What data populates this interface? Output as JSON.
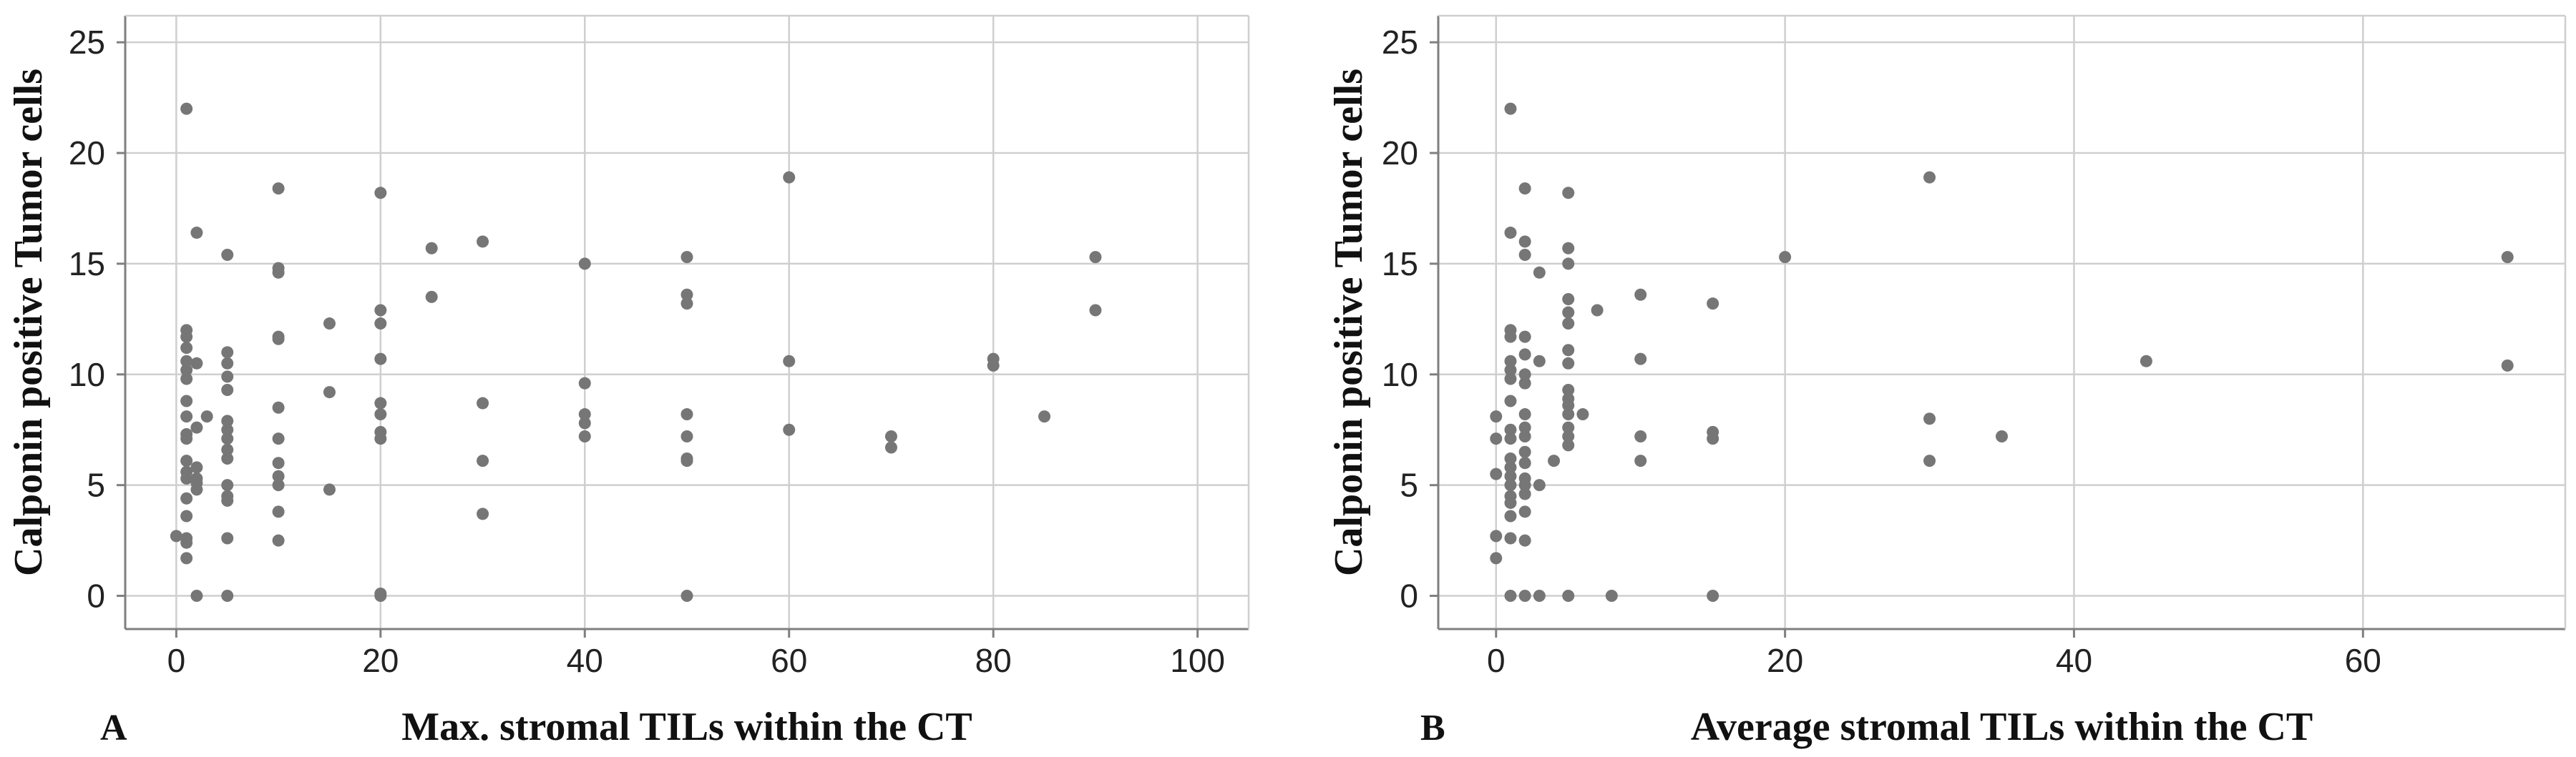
{
  "point_color": "#767676",
  "grid_color": "#cfcfcf",
  "axis_color": "#7f7f7f",
  "chart_data": [
    {
      "type": "scatter",
      "panel_label": "A",
      "xlabel": "Max. stromal TILs within the CT",
      "ylabel": "Calponin positive Tumor cells",
      "xlim": [
        -5,
        105
      ],
      "ylim": [
        -1.5,
        26.2
      ],
      "xticks": [
        0,
        20,
        40,
        60,
        80,
        100
      ],
      "yticks": [
        0,
        5,
        10,
        15,
        20,
        25
      ],
      "grid": true,
      "points": [
        {
          "x": 0,
          "y": 2.7
        },
        {
          "x": 1,
          "y": 22
        },
        {
          "x": 1,
          "y": 12
        },
        {
          "x": 1,
          "y": 11.7
        },
        {
          "x": 1,
          "y": 11.2
        },
        {
          "x": 1,
          "y": 10.6
        },
        {
          "x": 1,
          "y": 10.2
        },
        {
          "x": 1,
          "y": 9.8
        },
        {
          "x": 1,
          "y": 8.8
        },
        {
          "x": 1,
          "y": 8.1
        },
        {
          "x": 1,
          "y": 7.3
        },
        {
          "x": 1,
          "y": 7.1
        },
        {
          "x": 1,
          "y": 6.1
        },
        {
          "x": 1,
          "y": 5.6
        },
        {
          "x": 1,
          "y": 5.3
        },
        {
          "x": 1,
          "y": 4.4
        },
        {
          "x": 1,
          "y": 3.6
        },
        {
          "x": 1,
          "y": 2.6
        },
        {
          "x": 1,
          "y": 2.4
        },
        {
          "x": 1,
          "y": 1.7
        },
        {
          "x": 2,
          "y": 16.4
        },
        {
          "x": 2,
          "y": 10.5
        },
        {
          "x": 2,
          "y": 7.6
        },
        {
          "x": 2,
          "y": 5.8
        },
        {
          "x": 2,
          "y": 5.3
        },
        {
          "x": 2,
          "y": 5.1
        },
        {
          "x": 2,
          "y": 4.8
        },
        {
          "x": 2,
          "y": 0
        },
        {
          "x": 3,
          "y": 8.1
        },
        {
          "x": 5,
          "y": 15.4
        },
        {
          "x": 5,
          "y": 11
        },
        {
          "x": 5,
          "y": 10.5
        },
        {
          "x": 5,
          "y": 9.9
        },
        {
          "x": 5,
          "y": 9.3
        },
        {
          "x": 5,
          "y": 7.9
        },
        {
          "x": 5,
          "y": 7.5
        },
        {
          "x": 5,
          "y": 7.1
        },
        {
          "x": 5,
          "y": 6.6
        },
        {
          "x": 5,
          "y": 6.2
        },
        {
          "x": 5,
          "y": 5
        },
        {
          "x": 5,
          "y": 4.5
        },
        {
          "x": 5,
          "y": 4.3
        },
        {
          "x": 5,
          "y": 2.6
        },
        {
          "x": 5,
          "y": 0
        },
        {
          "x": 10,
          "y": 18.4
        },
        {
          "x": 10,
          "y": 14.8
        },
        {
          "x": 10,
          "y": 14.6
        },
        {
          "x": 10,
          "y": 11.7
        },
        {
          "x": 10,
          "y": 11.6
        },
        {
          "x": 10,
          "y": 8.5
        },
        {
          "x": 10,
          "y": 7.1
        },
        {
          "x": 10,
          "y": 6
        },
        {
          "x": 10,
          "y": 5.4
        },
        {
          "x": 10,
          "y": 5
        },
        {
          "x": 10,
          "y": 3.8
        },
        {
          "x": 10,
          "y": 2.5
        },
        {
          "x": 15,
          "y": 12.3
        },
        {
          "x": 15,
          "y": 9.2
        },
        {
          "x": 15,
          "y": 4.8
        },
        {
          "x": 20,
          "y": 18.2
        },
        {
          "x": 20,
          "y": 12.9
        },
        {
          "x": 20,
          "y": 12.3
        },
        {
          "x": 20,
          "y": 10.7
        },
        {
          "x": 20,
          "y": 8.7
        },
        {
          "x": 20,
          "y": 8.2
        },
        {
          "x": 20,
          "y": 7.4
        },
        {
          "x": 20,
          "y": 7.1
        },
        {
          "x": 20,
          "y": 0.1
        },
        {
          "x": 20,
          "y": 0
        },
        {
          "x": 25,
          "y": 15.7
        },
        {
          "x": 25,
          "y": 13.5
        },
        {
          "x": 30,
          "y": 16
        },
        {
          "x": 30,
          "y": 8.7
        },
        {
          "x": 30,
          "y": 6.1
        },
        {
          "x": 30,
          "y": 3.7
        },
        {
          "x": 40,
          "y": 15
        },
        {
          "x": 40,
          "y": 9.6
        },
        {
          "x": 40,
          "y": 8.2
        },
        {
          "x": 40,
          "y": 7.8
        },
        {
          "x": 40,
          "y": 7.2
        },
        {
          "x": 50,
          "y": 15.3
        },
        {
          "x": 50,
          "y": 13.6
        },
        {
          "x": 50,
          "y": 13.2
        },
        {
          "x": 50,
          "y": 8.2
        },
        {
          "x": 50,
          "y": 7.2
        },
        {
          "x": 50,
          "y": 6.2
        },
        {
          "x": 50,
          "y": 6.1
        },
        {
          "x": 50,
          "y": 0
        },
        {
          "x": 60,
          "y": 18.9
        },
        {
          "x": 60,
          "y": 10.6
        },
        {
          "x": 60,
          "y": 7.5
        },
        {
          "x": 70,
          "y": 7.2
        },
        {
          "x": 70,
          "y": 6.7
        },
        {
          "x": 80,
          "y": 10.7
        },
        {
          "x": 80,
          "y": 10.4
        },
        {
          "x": 85,
          "y": 8.1
        },
        {
          "x": 90,
          "y": 15.3
        },
        {
          "x": 90,
          "y": 12.9
        }
      ]
    },
    {
      "type": "scatter",
      "panel_label": "B",
      "xlabel": "Average stromal TILs within the CT",
      "ylabel": "Calponin positive Tumor cells",
      "xlim": [
        -4,
        74
      ],
      "ylim": [
        -1.5,
        26.2
      ],
      "xticks": [
        0,
        20,
        40,
        60
      ],
      "yticks": [
        0,
        5,
        10,
        15,
        20,
        25
      ],
      "grid": true,
      "points": [
        {
          "x": 0,
          "y": 8.1
        },
        {
          "x": 0,
          "y": 7.1
        },
        {
          "x": 0,
          "y": 5.5
        },
        {
          "x": 0,
          "y": 2.7
        },
        {
          "x": 0,
          "y": 1.7
        },
        {
          "x": 1,
          "y": 22
        },
        {
          "x": 1,
          "y": 16.4
        },
        {
          "x": 1,
          "y": 12
        },
        {
          "x": 1,
          "y": 11.7
        },
        {
          "x": 1,
          "y": 10.6
        },
        {
          "x": 1,
          "y": 10.2
        },
        {
          "x": 1,
          "y": 9.8
        },
        {
          "x": 1,
          "y": 8.8
        },
        {
          "x": 1,
          "y": 7.5
        },
        {
          "x": 1,
          "y": 7.1
        },
        {
          "x": 1,
          "y": 6.2
        },
        {
          "x": 1,
          "y": 5.8
        },
        {
          "x": 1,
          "y": 5.4
        },
        {
          "x": 1,
          "y": 5
        },
        {
          "x": 1,
          "y": 4.5
        },
        {
          "x": 1,
          "y": 4.2
        },
        {
          "x": 1,
          "y": 3.6
        },
        {
          "x": 1,
          "y": 2.6
        },
        {
          "x": 1,
          "y": 0
        },
        {
          "x": 2,
          "y": 18.4
        },
        {
          "x": 2,
          "y": 16
        },
        {
          "x": 2,
          "y": 15.4
        },
        {
          "x": 2,
          "y": 11.7
        },
        {
          "x": 2,
          "y": 10.9
        },
        {
          "x": 2,
          "y": 10
        },
        {
          "x": 2,
          "y": 9.6
        },
        {
          "x": 2,
          "y": 8.2
        },
        {
          "x": 2,
          "y": 7.6
        },
        {
          "x": 2,
          "y": 7.2
        },
        {
          "x": 2,
          "y": 6.5
        },
        {
          "x": 2,
          "y": 6
        },
        {
          "x": 2,
          "y": 5.3
        },
        {
          "x": 2,
          "y": 5
        },
        {
          "x": 2,
          "y": 4.6
        },
        {
          "x": 2,
          "y": 3.8
        },
        {
          "x": 2,
          "y": 2.5
        },
        {
          "x": 2,
          "y": 0
        },
        {
          "x": 3,
          "y": 14.6
        },
        {
          "x": 3,
          "y": 10.6
        },
        {
          "x": 3,
          "y": 5
        },
        {
          "x": 3,
          "y": 0
        },
        {
          "x": 4,
          "y": 6.1
        },
        {
          "x": 5,
          "y": 18.2
        },
        {
          "x": 5,
          "y": 15.7
        },
        {
          "x": 5,
          "y": 15
        },
        {
          "x": 5,
          "y": 13.4
        },
        {
          "x": 5,
          "y": 12.8
        },
        {
          "x": 5,
          "y": 12.3
        },
        {
          "x": 5,
          "y": 11.1
        },
        {
          "x": 5,
          "y": 10.5
        },
        {
          "x": 5,
          "y": 9.3
        },
        {
          "x": 5,
          "y": 8.9
        },
        {
          "x": 5,
          "y": 8.6
        },
        {
          "x": 5,
          "y": 8.2
        },
        {
          "x": 5,
          "y": 7.6
        },
        {
          "x": 5,
          "y": 7.2
        },
        {
          "x": 5,
          "y": 6.8
        },
        {
          "x": 5,
          "y": 0
        },
        {
          "x": 6,
          "y": 8.2
        },
        {
          "x": 7,
          "y": 12.9
        },
        {
          "x": 8,
          "y": 0
        },
        {
          "x": 10,
          "y": 13.6
        },
        {
          "x": 10,
          "y": 10.7
        },
        {
          "x": 10,
          "y": 7.2
        },
        {
          "x": 10,
          "y": 6.1
        },
        {
          "x": 15,
          "y": 13.2
        },
        {
          "x": 15,
          "y": 7.4
        },
        {
          "x": 15,
          "y": 7.1
        },
        {
          "x": 15,
          "y": 0
        },
        {
          "x": 20,
          "y": 15.3
        },
        {
          "x": 30,
          "y": 18.9
        },
        {
          "x": 30,
          "y": 8
        },
        {
          "x": 30,
          "y": 6.1
        },
        {
          "x": 35,
          "y": 7.2
        },
        {
          "x": 45,
          "y": 10.6
        },
        {
          "x": 70,
          "y": 15.3
        },
        {
          "x": 70,
          "y": 10.4
        }
      ]
    }
  ]
}
